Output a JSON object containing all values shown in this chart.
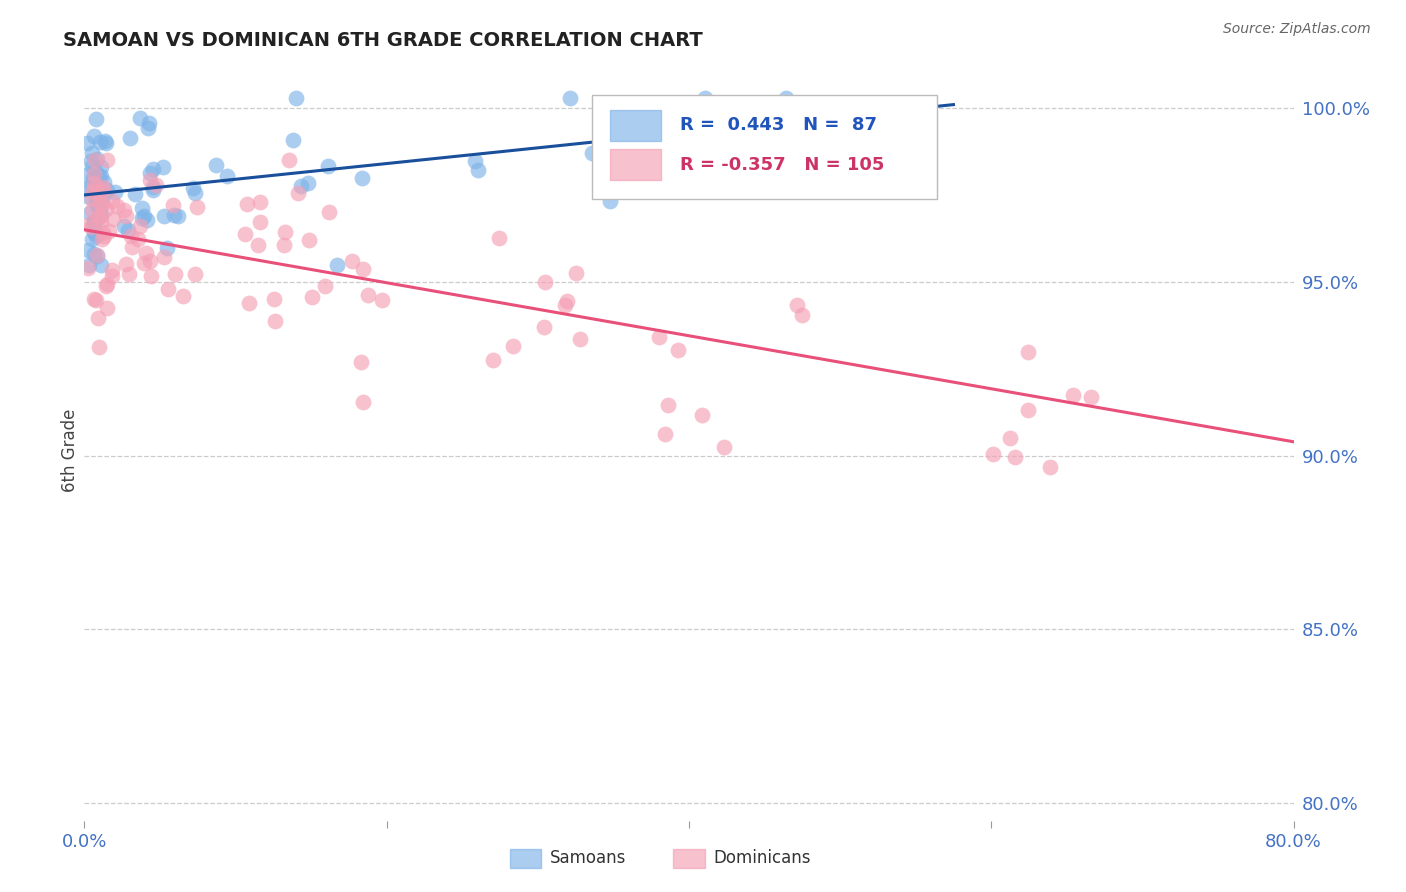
{
  "title": "SAMOAN VS DOMINICAN 6TH GRADE CORRELATION CHART",
  "ylabel": "6th Grade",
  "source": "Source: ZipAtlas.com",
  "xlim": [
    0.0,
    0.8
  ],
  "ylim": [
    0.795,
    1.008
  ],
  "ytick_positions": [
    0.8,
    0.85,
    0.9,
    0.95,
    1.0
  ],
  "ytick_labels": [
    "80.0%",
    "85.0%",
    "90.0%",
    "95.0%",
    "100.0%"
  ],
  "samoans_R": 0.443,
  "samoans_N": 87,
  "dominicans_R": -0.357,
  "dominicans_N": 105,
  "samoan_color": "#7EB3E8",
  "dominican_color": "#F4A0B5",
  "samoan_line_color": "#1A4F9C",
  "dominican_line_color": "#E8507A",
  "background_color": "#FFFFFF",
  "samoan_line_x0": 0.0,
  "samoan_line_y0": 0.975,
  "samoan_line_x1": 0.575,
  "samoan_line_y1": 1.001,
  "dominican_line_x0": 0.0,
  "dominican_line_y0": 0.965,
  "dominican_line_x1": 0.8,
  "dominican_line_y1": 0.904
}
